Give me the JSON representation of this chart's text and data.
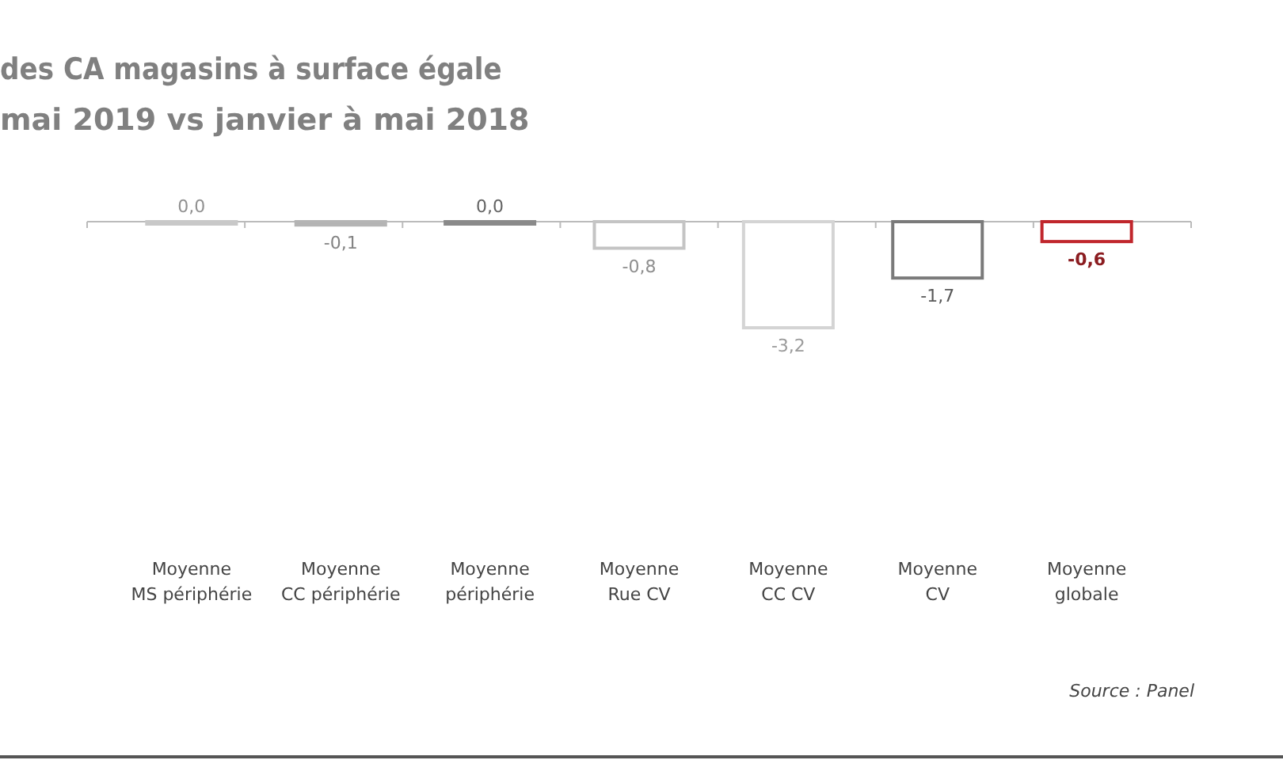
{
  "chart_data": {
    "type": "bar",
    "title": "des CA magasins à surface égale",
    "subtitle": "mai 2019 vs janvier à mai 2018",
    "categories": [
      "Moyenne MS périphérie",
      "Moyenne CC périphérie",
      "Moyenne périphérie",
      "Moyenne Rue CV",
      "Moyenne CC CV",
      "Moyenne CV",
      "Moyenne globale"
    ],
    "values": [
      0.0,
      -0.1,
      0.0,
      -0.8,
      -3.2,
      -1.7,
      -0.6
    ],
    "colors": [
      "#c8c8c8",
      "#b4b4b4",
      "#8a8a8a",
      "#c4c4c4",
      "#d4d4d4",
      "#7a7a7a",
      "#c0262c"
    ],
    "value_labels": [
      "0,0",
      "-0,1",
      "0,0",
      "-0,8",
      "-3,2",
      "-1,7",
      "-0,6"
    ],
    "annotations": [
      "Source : Panel"
    ]
  }
}
